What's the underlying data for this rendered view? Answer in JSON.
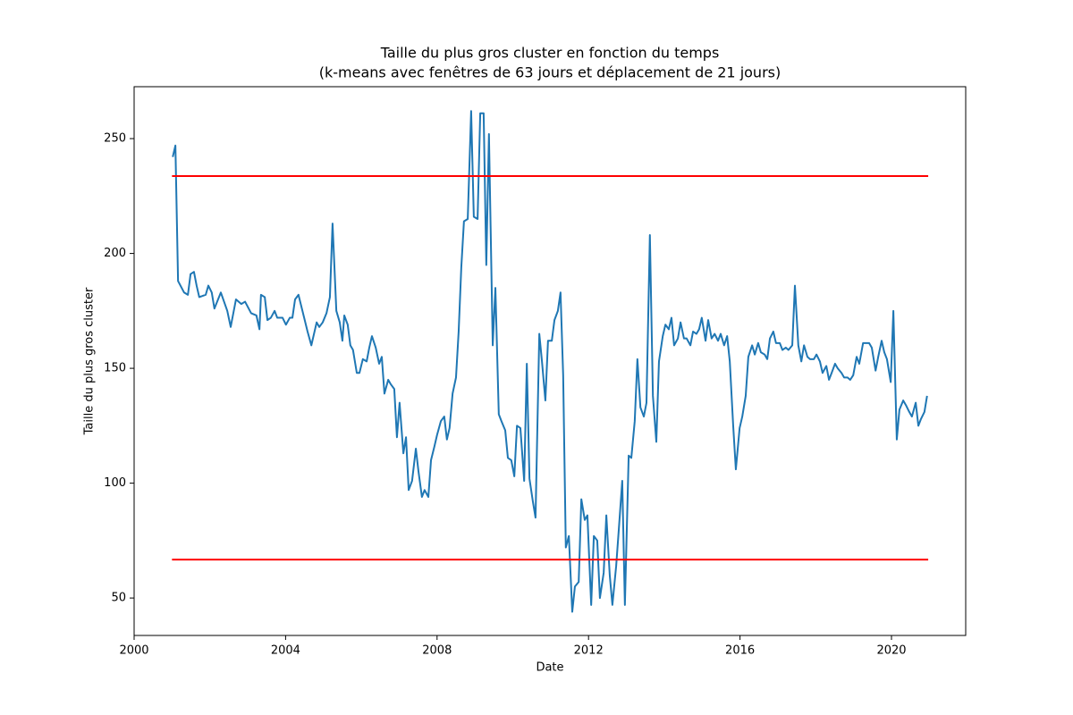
{
  "chart_data": {
    "type": "line",
    "title": [
      "Taille du plus gros cluster en fonction du temps",
      "(k-means avec fenêtres de 63 jours et déplacement de 21 jours)"
    ],
    "xlabel": "Date",
    "ylabel": "Taille du plus gros cluster",
    "xlim": [
      2000,
      2021.96
    ],
    "ylim": [
      33.7,
      272.6
    ],
    "xticks": [
      2000,
      2004,
      2008,
      2012,
      2016,
      2020
    ],
    "yticks": [
      50,
      100,
      150,
      200,
      250
    ],
    "color": "#1f77b4",
    "x": [
      2001.02,
      2001.09,
      2001.16,
      2001.32,
      2001.42,
      2001.49,
      2001.58,
      2001.65,
      2001.72,
      2001.89,
      2001.96,
      2002.05,
      2002.12,
      2002.29,
      2002.46,
      2002.55,
      2002.69,
      2002.83,
      2002.93,
      2003.09,
      2003.23,
      2003.31,
      2003.35,
      2003.45,
      2003.52,
      2003.61,
      2003.71,
      2003.78,
      2003.92,
      2004.01,
      2004.11,
      2004.18,
      2004.25,
      2004.34,
      2004.49,
      2004.58,
      2004.68,
      2004.82,
      2004.89,
      2004.98,
      2005.08,
      2005.17,
      2005.24,
      2005.34,
      2005.43,
      2005.5,
      2005.55,
      2005.64,
      2005.71,
      2005.78,
      2005.88,
      2005.95,
      2006.04,
      2006.14,
      2006.21,
      2006.28,
      2006.38,
      2006.47,
      2006.54,
      2006.61,
      2006.71,
      2006.78,
      2006.87,
      2006.94,
      2007.01,
      2007.11,
      2007.18,
      2007.25,
      2007.34,
      2007.44,
      2007.51,
      2007.6,
      2007.67,
      2007.77,
      2007.84,
      2007.93,
      2008.0,
      2008.1,
      2008.19,
      2008.26,
      2008.33,
      2008.41,
      2008.5,
      2008.57,
      2008.64,
      2008.71,
      2008.81,
      2008.9,
      2008.97,
      2009.07,
      2009.14,
      2009.23,
      2009.3,
      2009.37,
      2009.47,
      2009.54,
      2009.63,
      2009.7,
      2009.8,
      2009.87,
      2009.96,
      2010.04,
      2010.11,
      2010.2,
      2010.3,
      2010.37,
      2010.44,
      2010.53,
      2010.6,
      2010.7,
      2010.77,
      2010.86,
      2010.93,
      2011.03,
      2011.1,
      2011.19,
      2011.26,
      2011.33,
      2011.4,
      2011.48,
      2011.57,
      2011.64,
      2011.74,
      2011.81,
      2011.9,
      2011.97,
      2012.07,
      2012.14,
      2012.23,
      2012.3,
      2012.4,
      2012.47,
      2012.56,
      2012.63,
      2012.73,
      2012.8,
      2012.89,
      2012.96,
      2013.06,
      2013.13,
      2013.22,
      2013.29,
      2013.37,
      2013.46,
      2013.53,
      2013.62,
      2013.7,
      2013.79,
      2013.86,
      2013.96,
      2014.03,
      2014.12,
      2014.19,
      2014.26,
      2014.36,
      2014.43,
      2014.52,
      2014.59,
      2014.69,
      2014.76,
      2014.85,
      2014.92,
      2014.99,
      2015.09,
      2015.16,
      2015.25,
      2015.33,
      2015.42,
      2015.49,
      2015.58,
      2015.66,
      2015.73,
      2015.82,
      2015.89,
      2015.99,
      2016.06,
      2016.15,
      2016.22,
      2016.32,
      2016.39,
      2016.48,
      2016.55,
      2016.65,
      2016.72,
      2016.79,
      2016.88,
      2016.95,
      2017.05,
      2017.12,
      2017.21,
      2017.28,
      2017.38,
      2017.45,
      2017.54,
      2017.62,
      2017.69,
      2017.78,
      2017.85,
      2017.95,
      2018.02,
      2018.11,
      2018.18,
      2018.28,
      2018.35,
      2018.42,
      2018.51,
      2018.58,
      2018.68,
      2018.75,
      2018.84,
      2018.91,
      2018.99,
      2019.08,
      2019.15,
      2019.25,
      2019.32,
      2019.41,
      2019.48,
      2019.58,
      2019.65,
      2019.74,
      2019.81,
      2019.88,
      2019.98,
      2020.05,
      2020.14,
      2020.21,
      2020.31,
      2020.38,
      2020.47,
      2020.54,
      2020.64,
      2020.71,
      2020.78,
      2020.87,
      2020.94
    ],
    "values": [
      242,
      247,
      188,
      183,
      182,
      191,
      192,
      186,
      181,
      182,
      186,
      183,
      176,
      183,
      175,
      168,
      180,
      178,
      179,
      174,
      173,
      167,
      182,
      181,
      171,
      172,
      175,
      172,
      172,
      169,
      172,
      172,
      180,
      182,
      172,
      166,
      160,
      170,
      168,
      170,
      174,
      181,
      213,
      175,
      170,
      162,
      173,
      169,
      160,
      158,
      148,
      148,
      154,
      153,
      159,
      164,
      159,
      152,
      155,
      139,
      145,
      143,
      141,
      120,
      135,
      113,
      120,
      97,
      101,
      115,
      105,
      94,
      97,
      94,
      110,
      116,
      121,
      127,
      129,
      119,
      124,
      139,
      146,
      166,
      194,
      214,
      215,
      262,
      216,
      215,
      261,
      261,
      195,
      252,
      160,
      185,
      130,
      127,
      123,
      111,
      110,
      103,
      125,
      124,
      101,
      152,
      102,
      92,
      85,
      165,
      153,
      136,
      162,
      162,
      171,
      175,
      183,
      147,
      72,
      77,
      44,
      55,
      57,
      93,
      84,
      86,
      47,
      77,
      75,
      50,
      61,
      86,
      60,
      47,
      64,
      80,
      101,
      47,
      112,
      111,
      127,
      154,
      133,
      129,
      135,
      208,
      138,
      118,
      153,
      164,
      169,
      167,
      172,
      160,
      163,
      170,
      163,
      163,
      160,
      166,
      165,
      167,
      172,
      162,
      171,
      163,
      165,
      162,
      165,
      160,
      164,
      153,
      125,
      106,
      124,
      129,
      138,
      155,
      160,
      156,
      161,
      157,
      156,
      154,
      163,
      166,
      161,
      161,
      158,
      159,
      158,
      160,
      186,
      160,
      153,
      160,
      155,
      154,
      154,
      156,
      153,
      148,
      151,
      145,
      148,
      152,
      150,
      148,
      146,
      146,
      145,
      147,
      155,
      152,
      161,
      161,
      161,
      159,
      149,
      155,
      162,
      157,
      154,
      144,
      175,
      119,
      132,
      136,
      134,
      131,
      129,
      135,
      125,
      128,
      131,
      138
    ],
    "hlines": [
      {
        "y": 233.7,
        "xmin": 2001,
        "xmax": 2020.97,
        "color": "#ff0000"
      },
      {
        "y": 66.7,
        "xmin": 2001,
        "xmax": 2020.97,
        "color": "#ff0000"
      }
    ]
  }
}
